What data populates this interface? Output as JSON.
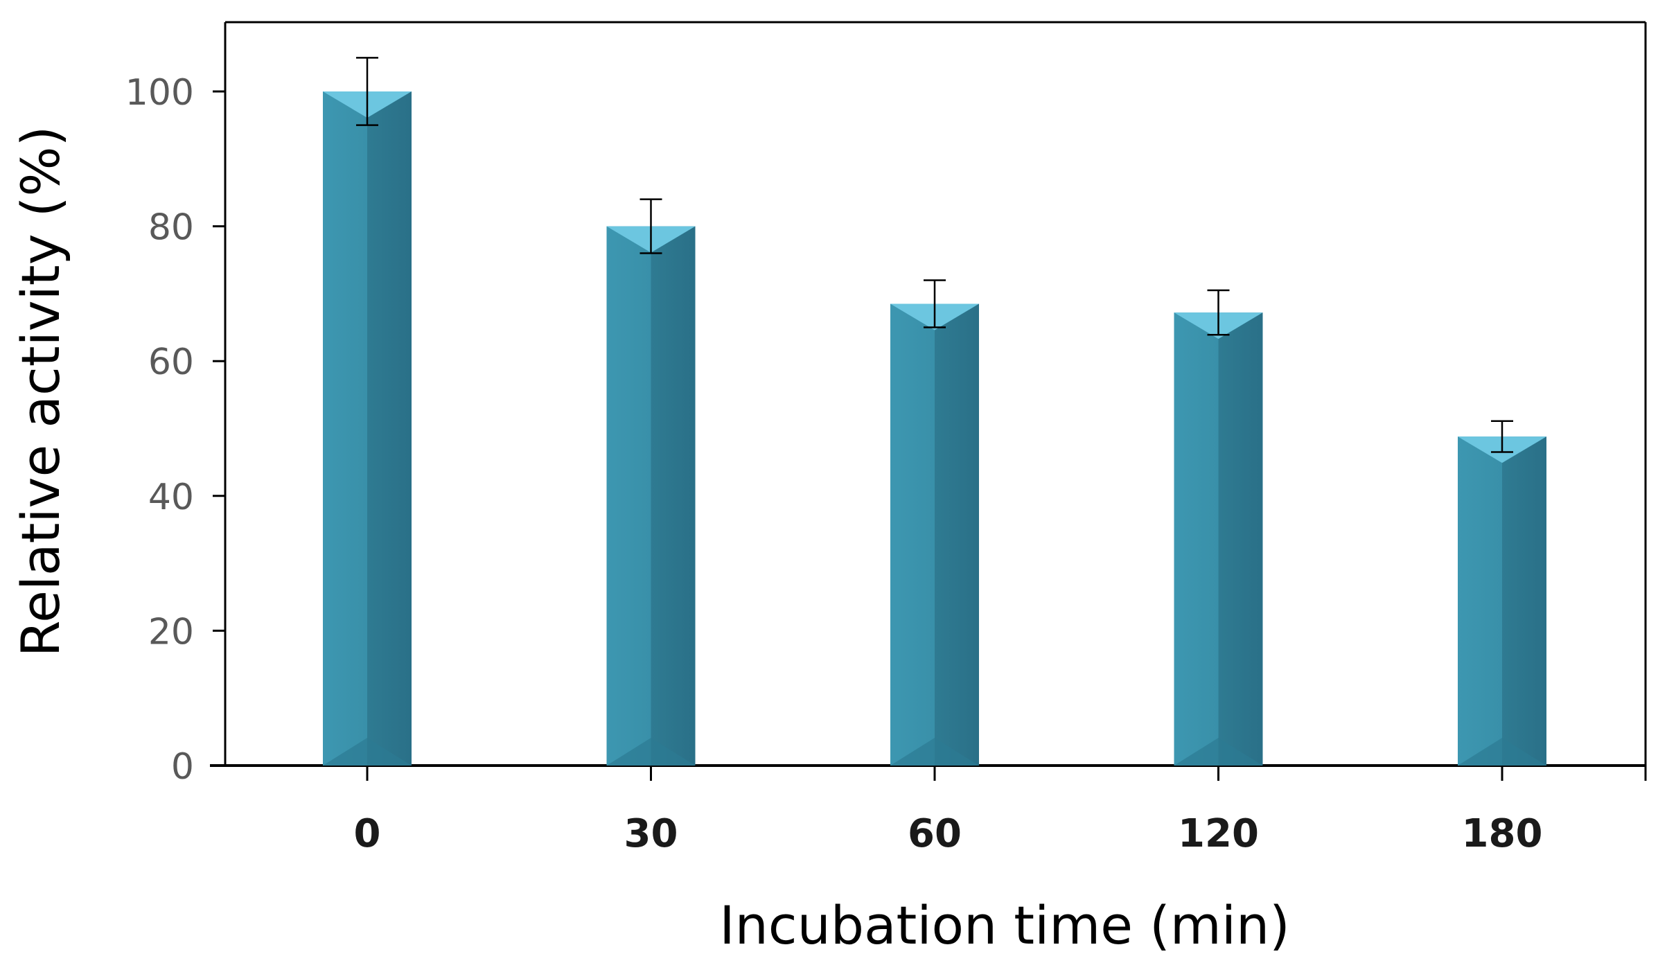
{
  "chart_data": {
    "type": "bar",
    "title": "",
    "categories": [
      "0",
      "30",
      "60",
      "120",
      "180"
    ],
    "values": [
      100,
      80,
      68.5,
      67.2,
      48.8
    ],
    "errors": [
      5,
      4,
      3.5,
      3.3,
      2.3
    ],
    "xlabel": "Incubation time (min)",
    "ylabel": "Relative activity  (%)",
    "ylim": [
      0,
      110
    ],
    "yticks": [
      0,
      20,
      40,
      60,
      80,
      100
    ],
    "bar_color": "#3a8ea8",
    "bar_top_color": "#6cc6e0",
    "grid": false
  }
}
